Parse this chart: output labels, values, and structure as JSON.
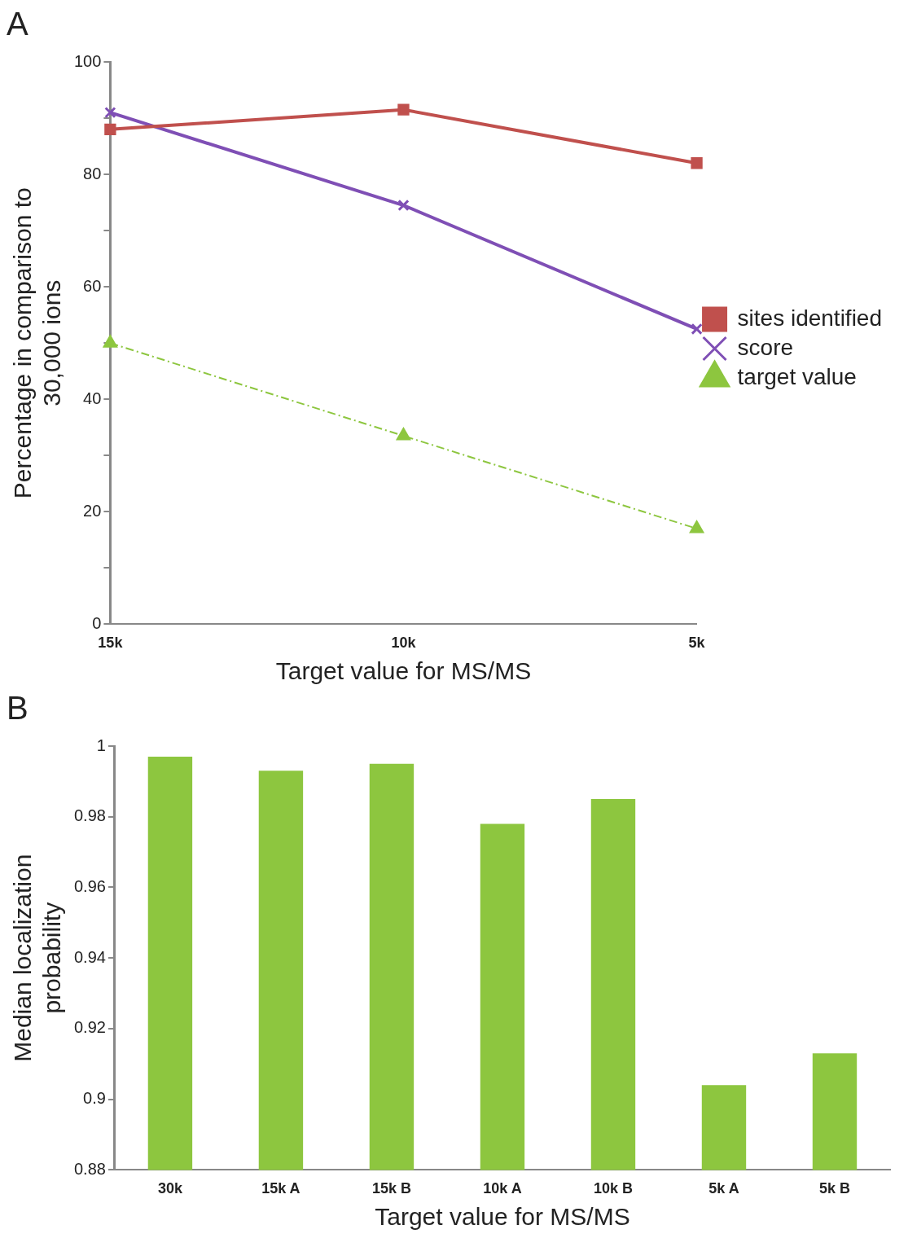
{
  "chart_data": [
    {
      "type": "line",
      "title": "A",
      "xlabel": "Target value for MS/MS",
      "ylabel": "Percentage in comparison to\n30,000 ions",
      "categories": [
        "15k",
        "10k",
        "5k"
      ],
      "series": [
        {
          "name": "sites identified",
          "color": "#c0504d",
          "values": [
            88,
            91.5,
            82
          ],
          "marker": "square",
          "line_style": "solid"
        },
        {
          "name": "score",
          "color": "#7f4fb5",
          "values": [
            91,
            74.5,
            52.5
          ],
          "marker": "cross",
          "line_style": "solid"
        },
        {
          "name": "target value",
          "color": "#8dc63f",
          "values": [
            50,
            33.5,
            17
          ],
          "marker": "triangle",
          "line_style": "dashed"
        }
      ],
      "ylim": [
        0,
        100
      ],
      "yticks": [
        0,
        {
          "value": 10,
          "label": null
        },
        20,
        {
          "value": 30,
          "label": null
        },
        40,
        {
          "value": 50,
          "label": null
        },
        60,
        {
          "value": 70,
          "label": null
        },
        80,
        {
          "value": 90,
          "label": null
        },
        100
      ],
      "grid": false,
      "legend": "right"
    },
    {
      "type": "bar",
      "title": "B",
      "xlabel": "Target value for MS/MS",
      "ylabel": "Median localization\nprobability",
      "categories": [
        "30k",
        "15k A",
        "15k B",
        "10k A",
        "10k B",
        "5k A",
        "5k B"
      ],
      "values": [
        0.997,
        0.993,
        0.995,
        0.978,
        0.985,
        0.904,
        0.913
      ],
      "color": "#8dc63f",
      "ylim": [
        0.88,
        1
      ],
      "yticks": [
        0.88,
        0.9,
        0.92,
        0.94,
        0.96,
        0.98,
        1
      ],
      "grid": false,
      "legend": false
    }
  ]
}
